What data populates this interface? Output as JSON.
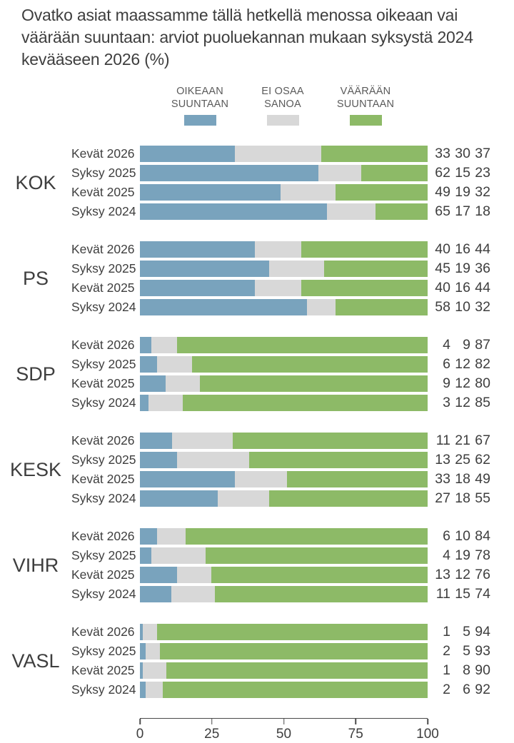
{
  "title": "Ovatko asiat maassamme tällä hetkellä menossa oikeaan vai\nväärään suuntaan: arviot puoluekannan mukaan syksystä 2024\nkevääseen 2026 (%)",
  "legend": {
    "items": [
      {
        "key": "oikeaan-suuntaan",
        "label": "OIKEAAN\nSUUNTAAN",
        "color": "#79a3bd"
      },
      {
        "key": "ei-osaa-sanoa",
        "label": "EI OSAA\nSANOA",
        "color": "#d8d8d8"
      },
      {
        "key": "vaaraan-suuntaan",
        "label": "VÄÄRÄÄN\nSUUNTAAN",
        "color": "#8dba67"
      }
    ]
  },
  "chart_data": {
    "type": "bar",
    "stacked": true,
    "orientation": "horizontal",
    "x_unit": "%",
    "xlim": [
      0,
      100
    ],
    "xticks": [
      0,
      25,
      50,
      75,
      100
    ],
    "grid": false,
    "legend_position": "top",
    "series": [
      {
        "key": "oikeaan-suuntaan",
        "name": "Oikeaan suuntaan",
        "color": "#79a3bd"
      },
      {
        "key": "ei-osaa-sanoa",
        "name": "Ei osaa sanoa",
        "color": "#d8d8d8"
      },
      {
        "key": "vaaraan-suuntaan",
        "name": "Väärään suuntaan",
        "color": "#8dba67"
      }
    ],
    "row_labels": [
      "Kevät 2026",
      "Syksy 2025",
      "Kevät 2025",
      "Syksy 2024"
    ],
    "groups": [
      {
        "party": "KOK",
        "rows": [
          {
            "label": "Kevät 2026",
            "values": [
              33,
              30,
              37
            ]
          },
          {
            "label": "Syksy 2025",
            "values": [
              62,
              15,
              23
            ]
          },
          {
            "label": "Kevät 2025",
            "values": [
              49,
              19,
              32
            ]
          },
          {
            "label": "Syksy 2024",
            "values": [
              65,
              17,
              18
            ]
          }
        ]
      },
      {
        "party": "PS",
        "rows": [
          {
            "label": "Kevät 2026",
            "values": [
              40,
              16,
              44
            ]
          },
          {
            "label": "Syksy 2025",
            "values": [
              45,
              19,
              36
            ]
          },
          {
            "label": "Kevät 2025",
            "values": [
              40,
              16,
              44
            ]
          },
          {
            "label": "Syksy 2024",
            "values": [
              58,
              10,
              32
            ]
          }
        ]
      },
      {
        "party": "SDP",
        "rows": [
          {
            "label": "Kevät 2026",
            "values": [
              4,
              9,
              87
            ]
          },
          {
            "label": "Syksy 2025",
            "values": [
              6,
              12,
              82
            ]
          },
          {
            "label": "Kevät 2025",
            "values": [
              9,
              12,
              80
            ]
          },
          {
            "label": "Syksy 2024",
            "values": [
              3,
              12,
              85
            ]
          }
        ]
      },
      {
        "party": "KESK",
        "rows": [
          {
            "label": "Kevät 2026",
            "values": [
              11,
              21,
              67
            ]
          },
          {
            "label": "Syksy 2025",
            "values": [
              13,
              25,
              62
            ]
          },
          {
            "label": "Kevät 2025",
            "values": [
              33,
              18,
              49
            ]
          },
          {
            "label": "Syksy 2024",
            "values": [
              27,
              18,
              55
            ]
          }
        ]
      },
      {
        "party": "VIHR",
        "rows": [
          {
            "label": "Kevät 2026",
            "values": [
              6,
              10,
              84
            ]
          },
          {
            "label": "Syksy 2025",
            "values": [
              4,
              19,
              78
            ]
          },
          {
            "label": "Kevät 2025",
            "values": [
              13,
              12,
              76
            ]
          },
          {
            "label": "Syksy 2024",
            "values": [
              11,
              15,
              74
            ]
          }
        ]
      },
      {
        "party": "VASL",
        "rows": [
          {
            "label": "Kevät 2026",
            "values": [
              1,
              5,
              94
            ]
          },
          {
            "label": "Syksy 2025",
            "values": [
              2,
              5,
              93
            ]
          },
          {
            "label": "Kevät 2025",
            "values": [
              1,
              8,
              90
            ]
          },
          {
            "label": "Syksy 2024",
            "values": [
              2,
              6,
              92
            ]
          }
        ]
      }
    ]
  }
}
